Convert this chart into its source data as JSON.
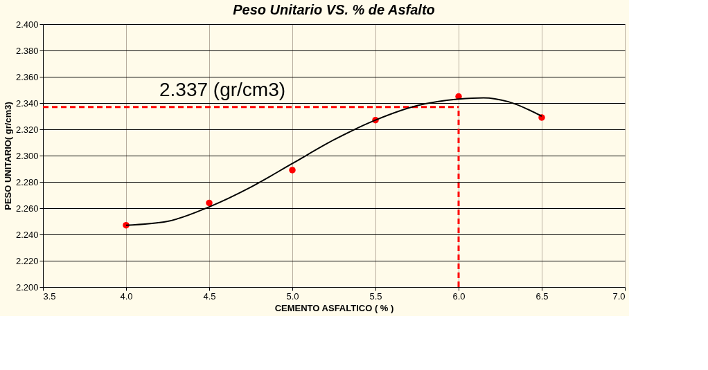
{
  "chart_data": {
    "type": "scatter",
    "title": "Peso Unitario  VS.  % de Asfalto",
    "xlabel": "CEMENTO ASFALTICO ( % )",
    "ylabel": "PESO UNITARIO( gr/cm3)",
    "x": [
      4.0,
      4.5,
      5.0,
      5.5,
      6.0,
      6.5
    ],
    "series": [
      {
        "color": "#ff0000",
        "values": [
          2.247,
          2.264,
          2.289,
          2.327,
          2.345,
          2.329
        ]
      },
      {
        "type": "line",
        "marker": "none",
        "color": "#000000",
        "x": [
          4.0,
          4.25,
          4.5,
          4.75,
          5.0,
          5.25,
          5.5,
          5.75,
          6.0,
          6.15,
          6.3,
          6.5
        ],
        "values": [
          2.247,
          2.25,
          2.261,
          2.276,
          2.294,
          2.312,
          2.327,
          2.338,
          2.343,
          2.344,
          2.341,
          2.33
        ]
      }
    ],
    "xlim": [
      3.5,
      7.0
    ],
    "xticks": [
      {
        "value": 3.5,
        "label": "3.5"
      },
      {
        "value": 4.0,
        "label": "4.0"
      },
      {
        "value": 4.5,
        "label": "4.5"
      },
      {
        "value": 5.0,
        "label": "5.0"
      },
      {
        "value": 5.5,
        "label": "5.5"
      },
      {
        "value": 6.0,
        "label": "6.0"
      },
      {
        "value": 6.5,
        "label": "6.5"
      },
      {
        "value": 7.0,
        "label": "7.0"
      }
    ],
    "ylim": [
      2.2,
      2.4
    ],
    "yticks": [
      {
        "value": 2.2,
        "label": "2.200"
      },
      {
        "value": 2.22,
        "label": "2.220"
      },
      {
        "value": 2.24,
        "label": "2.240"
      },
      {
        "value": 2.26,
        "label": "2.260"
      },
      {
        "value": 2.28,
        "label": "2.280"
      },
      {
        "value": 2.3,
        "label": "2.300"
      },
      {
        "value": 2.32,
        "label": "2.320"
      },
      {
        "value": 2.34,
        "label": "2.340"
      },
      {
        "value": 2.36,
        "label": "2.360"
      },
      {
        "value": 2.38,
        "label": "2.380"
      },
      {
        "value": 2.4,
        "label": "2.400"
      }
    ],
    "ref_lines": [
      {
        "axis": "y",
        "value": 2.337,
        "color": "#ff0000",
        "line_style": "dashed"
      },
      {
        "axis": "x",
        "value": 6.0,
        "color": "#ff0000",
        "line_style": "dashed"
      }
    ],
    "annotations": [
      {
        "text": "2.337 (gr/cm3)",
        "x": 4.2,
        "y": 2.337
      }
    ],
    "grid": true,
    "marker": "circle"
  }
}
